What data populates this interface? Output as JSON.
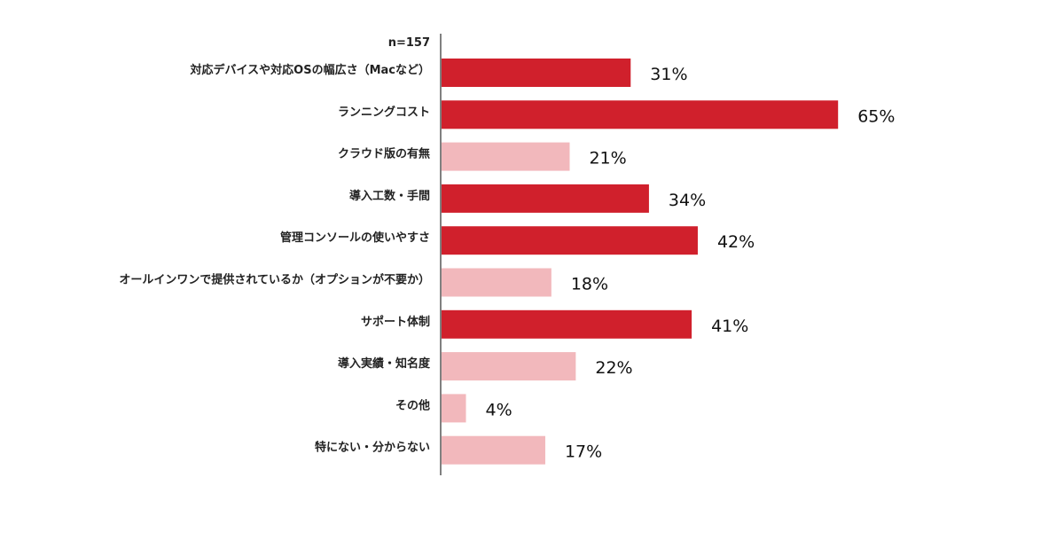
{
  "chart_data": {
    "type": "bar",
    "orientation": "horizontal",
    "note": "n=157",
    "categories": [
      "対応デバイスや対応OSの幅広さ（Macなど）",
      "ランニングコスト",
      "クラウド版の有無",
      "導入工数・手間",
      "管理コンソールの使いやすさ",
      "オールインワンで提供されているか（オプションが不要か）",
      "サポート体制",
      "導入実績・知名度",
      "その他",
      "特にない・分からない"
    ],
    "values": [
      31,
      65,
      21,
      34,
      42,
      18,
      41,
      22,
      4,
      17
    ],
    "value_labels": [
      "31%",
      "65%",
      "21%",
      "34%",
      "42%",
      "18%",
      "41%",
      "22%",
      "4%",
      "17%"
    ],
    "highlighted": [
      true,
      true,
      false,
      true,
      true,
      false,
      true,
      false,
      false,
      false
    ],
    "xlim": [
      0,
      100
    ],
    "grid": false,
    "colors": {
      "highlight": "#d0202c",
      "muted": "#f2b8bc",
      "axis": "#808080"
    }
  }
}
